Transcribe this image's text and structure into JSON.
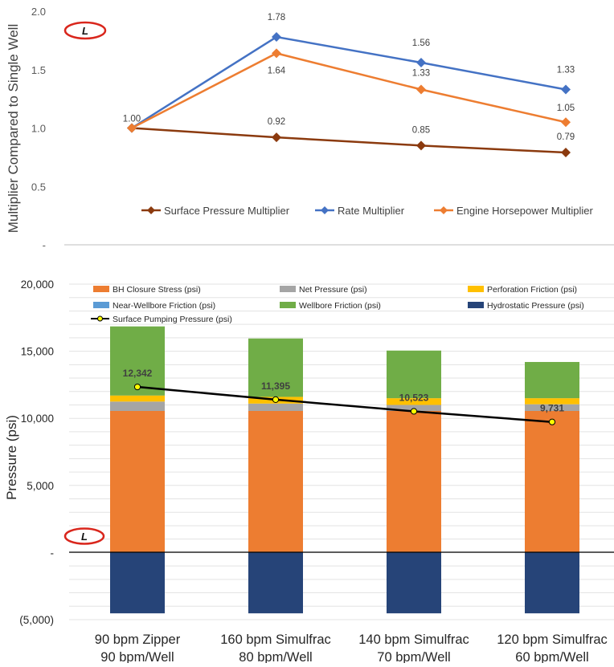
{
  "colors": {
    "surface_pressure": "#8B3A0E",
    "rate": "#4472C4",
    "engine_hp": "#ED7D31",
    "bh_closure": "#ED7D31",
    "net_pressure": "#A5A5A5",
    "perforation": "#FFC000",
    "near_wellbore": "#5B9BD5",
    "wellbore": "#70AD47",
    "hydrostatic": "#264478",
    "surface_pumping_line": "#000000",
    "surface_pumping_marker": "#FFFF00",
    "logo_red": "#D9261C"
  },
  "icons": {
    "logo": "liberty-logo"
  },
  "chart_data": [
    {
      "type": "line",
      "ylabel": "Multiplier Compared to Single Well",
      "xlabel": "",
      "ylim": [
        0,
        2.0
      ],
      "yticks": [
        "-",
        "0.5",
        "1.0",
        "1.5",
        "2.0"
      ],
      "grid": false,
      "legend_position": "bottom-inside",
      "series": [
        {
          "name": "Surface Pressure Multiplier",
          "values": [
            1.0,
            0.92,
            0.85,
            0.79
          ],
          "labels": [
            "1.00",
            "0.92",
            "0.85",
            "0.79"
          ]
        },
        {
          "name": "Rate Multiplier",
          "values": [
            1.0,
            1.78,
            1.56,
            1.33
          ],
          "labels": [
            "1.00",
            "1.78",
            "1.56",
            "1.33"
          ]
        },
        {
          "name": "Engine Horsepower Multiplier",
          "values": [
            1.0,
            1.64,
            1.33,
            1.05
          ],
          "labels": [
            "1.00",
            "1.64",
            "1.33",
            "1.05"
          ]
        }
      ]
    },
    {
      "type": "bar",
      "stacked": true,
      "ylabel": "Pressure (psi)",
      "xlabel": "",
      "ylim": [
        -5000,
        20000
      ],
      "yticks": [
        "(5,000)",
        "-",
        "5,000",
        "10,000",
        "15,000",
        "20,000"
      ],
      "grid": true,
      "legend_position": "top",
      "categories": [
        [
          "90 bpm Zipper",
          "90 bpm/Well"
        ],
        [
          "160 bpm Simulfrac",
          "80 bpm/Well"
        ],
        [
          "140 bpm Simulfrac",
          "70 bpm/Well"
        ],
        [
          "120 bpm Simulfrac",
          "60  bpm/Well"
        ]
      ],
      "series": [
        {
          "name": "BH Closure Stress (psi)",
          "values": [
            10550,
            10550,
            10550,
            10550
          ]
        },
        {
          "name": "Net Pressure (psi)",
          "values": [
            700,
            550,
            450,
            500
          ]
        },
        {
          "name": "Perforation Friction (psi)",
          "values": [
            450,
            500,
            500,
            450
          ]
        },
        {
          "name": "Near-Wellbore Friction (psi)",
          "values": [
            0,
            0,
            0,
            0
          ]
        },
        {
          "name": "Wellbore Friction (psi)",
          "values": [
            5150,
            4350,
            3550,
            2700
          ]
        },
        {
          "name": "Hydrostatic Pressure (psi)",
          "values": [
            -4530,
            -4530,
            -4530,
            -4530
          ]
        }
      ],
      "line_series": {
        "name": "Surface Pumping Pressure (psi)",
        "values": [
          12342,
          11395,
          10523,
          9731
        ],
        "labels": [
          "12,342",
          "11,395",
          "10,523",
          "9,731"
        ]
      }
    }
  ]
}
